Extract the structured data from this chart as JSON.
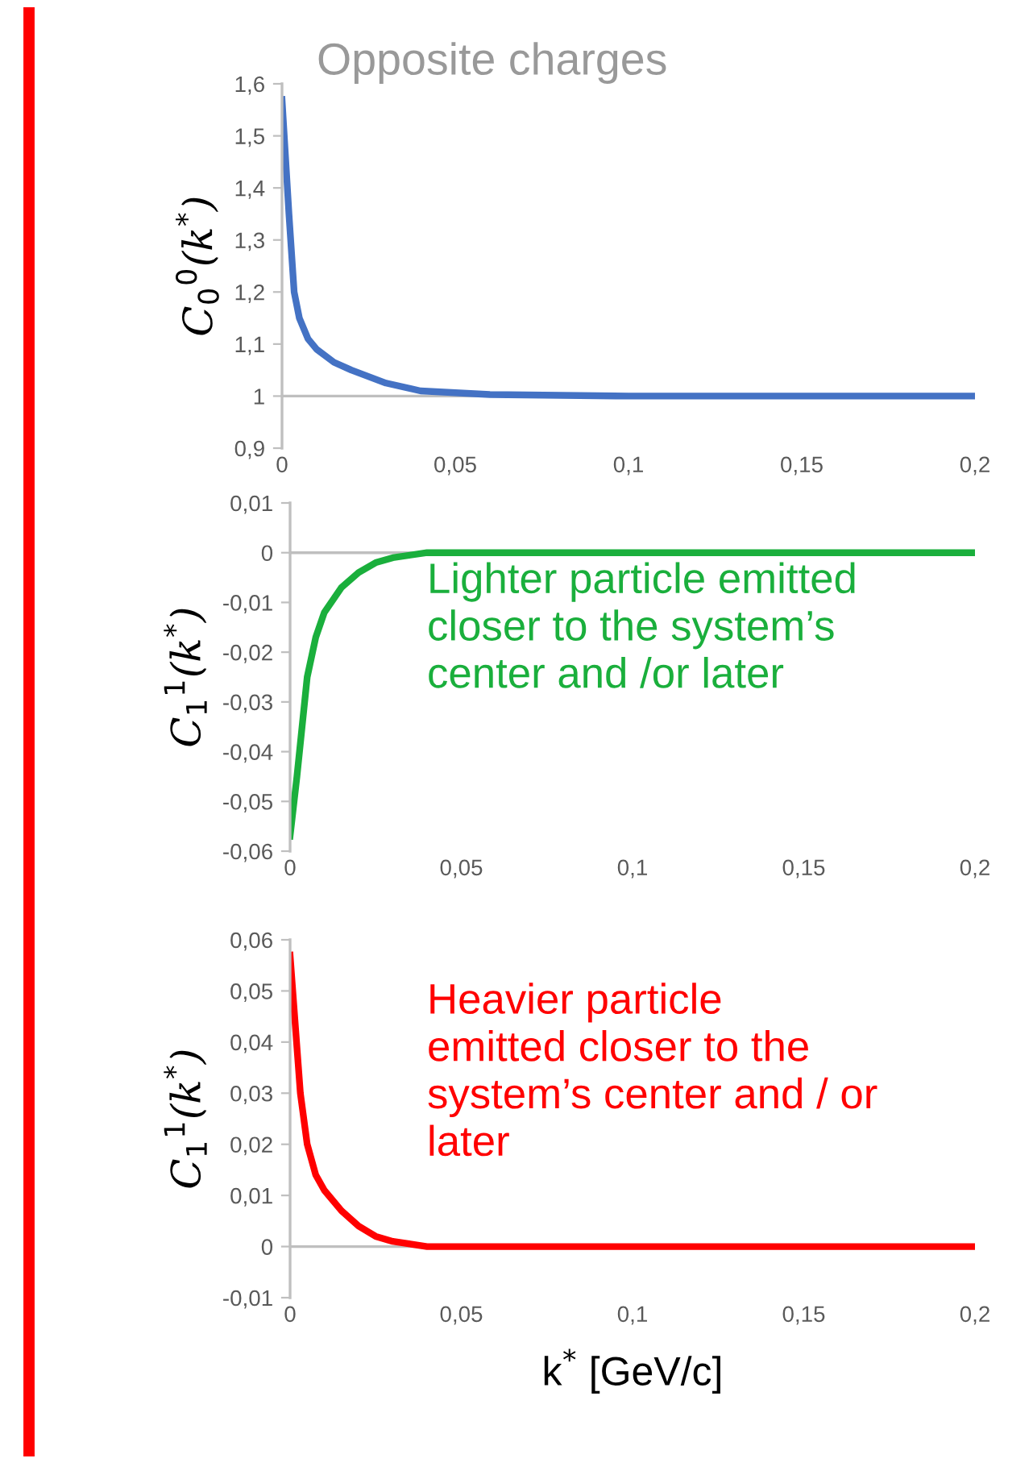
{
  "chart_data": [
    {
      "type": "line",
      "title": "Opposite charges",
      "ylabel": "C$_{0}$$^{0}$(k$^{*}$)",
      "series": [
        {
          "color": "#4472c4",
          "x": [
            0,
            0.002,
            0.0035,
            0.005,
            0.0075,
            0.01,
            0.015,
            0.02,
            0.03,
            0.04,
            0.06,
            0.1,
            0.15,
            0.2
          ],
          "values": [
            1.57,
            1.35,
            1.2,
            1.15,
            1.11,
            1.09,
            1.065,
            1.05,
            1.025,
            1.01,
            1.003,
            1.0,
            1.0,
            1.0
          ]
        }
      ],
      "xlim": [
        0,
        0.2
      ],
      "xticks": [
        0,
        {
          "value": 0.05,
          "label": "0,05"
        },
        {
          "value": 0.1,
          "label": "0,1"
        },
        {
          "value": 0.15,
          "label": "0,15"
        },
        {
          "value": 0.2,
          "label": "0,2"
        }
      ],
      "ylim": [
        0.9,
        1.6
      ],
      "yticks": [
        {
          "value": 0.9,
          "label": "0,9"
        },
        1,
        {
          "value": 1.1,
          "label": "1,1"
        },
        {
          "value": 1.2,
          "label": "1,2"
        },
        {
          "value": 1.3,
          "label": "1,3"
        },
        {
          "value": 1.4,
          "label": "1,4"
        },
        {
          "value": 1.5,
          "label": "1,5"
        },
        {
          "value": 1.6,
          "label": "1,6"
        }
      ],
      "ref_lines": [
        {
          "axis": "y",
          "value": 1,
          "color": "#bfbfbf"
        }
      ],
      "grid": false
    },
    {
      "type": "line",
      "ylabel": "C$_{1}$$^{1}$(k$^{*}$)",
      "annotations": [
        "Lighter particle emitted\ncloser to the system’s\ncenter and /or later"
      ],
      "series": [
        {
          "color": "#1aaf3c",
          "x": [
            0,
            0.002,
            0.005,
            0.0075,
            0.01,
            0.015,
            0.02,
            0.025,
            0.03,
            0.04,
            0.06,
            0.1,
            0.15,
            0.2
          ],
          "values": [
            -0.057,
            -0.045,
            -0.025,
            -0.017,
            -0.012,
            -0.007,
            -0.004,
            -0.002,
            -0.001,
            0,
            0,
            0,
            0,
            0
          ]
        }
      ],
      "xlim": [
        0,
        0.2
      ],
      "xticks": [
        0,
        {
          "value": 0.05,
          "label": "0,05"
        },
        {
          "value": 0.1,
          "label": "0,1"
        },
        {
          "value": 0.15,
          "label": "0,15"
        },
        {
          "value": 0.2,
          "label": "0,2"
        }
      ],
      "ylim": [
        -0.06,
        0.01
      ],
      "yticks": [
        {
          "value": -0.06,
          "label": "-0,06"
        },
        {
          "value": -0.05,
          "label": "-0,05"
        },
        {
          "value": -0.04,
          "label": "-0,04"
        },
        {
          "value": -0.03,
          "label": "-0,03"
        },
        {
          "value": -0.02,
          "label": "-0,02"
        },
        {
          "value": -0.01,
          "label": "-0,01"
        },
        0,
        {
          "value": 0.01,
          "label": "0,01"
        }
      ],
      "ref_lines": [
        {
          "axis": "y",
          "value": 0,
          "color": "#bfbfbf"
        }
      ],
      "grid": false
    },
    {
      "type": "line",
      "ylabel": "C$_{1}$$^{1}$(k$^{*}$)",
      "xlabel": "k$^{*}$ [GeV/c]",
      "annotations": [
        "Heavier particle\nemitted closer to the\nsystem’s center and / or\nlater"
      ],
      "series": [
        {
          "color": "#ff0000",
          "x": [
            0,
            0.003,
            0.005,
            0.0075,
            0.01,
            0.015,
            0.02,
            0.025,
            0.03,
            0.04,
            0.06,
            0.1,
            0.15,
            0.2
          ],
          "values": [
            0.057,
            0.03,
            0.02,
            0.014,
            0.011,
            0.007,
            0.004,
            0.002,
            0.001,
            0,
            0,
            0,
            0,
            0
          ]
        }
      ],
      "xlim": [
        0,
        0.2
      ],
      "xticks": [
        0,
        {
          "value": 0.05,
          "label": "0,05"
        },
        {
          "value": 0.1,
          "label": "0,1"
        },
        {
          "value": 0.15,
          "label": "0,15"
        },
        {
          "value": 0.2,
          "label": "0,2"
        }
      ],
      "ylim": [
        -0.01,
        0.06
      ],
      "yticks": [
        {
          "value": -0.01,
          "label": "-0,01"
        },
        0,
        {
          "value": 0.01,
          "label": "0,01"
        },
        {
          "value": 0.02,
          "label": "0,02"
        },
        {
          "value": 0.03,
          "label": "0,03"
        },
        {
          "value": 0.04,
          "label": "0,04"
        },
        {
          "value": 0.05,
          "label": "0,05"
        },
        {
          "value": 0.06,
          "label": "0,06"
        }
      ],
      "ref_lines": [
        {
          "axis": "y",
          "value": 0,
          "color": "#bfbfbf"
        }
      ],
      "grid": false
    }
  ]
}
